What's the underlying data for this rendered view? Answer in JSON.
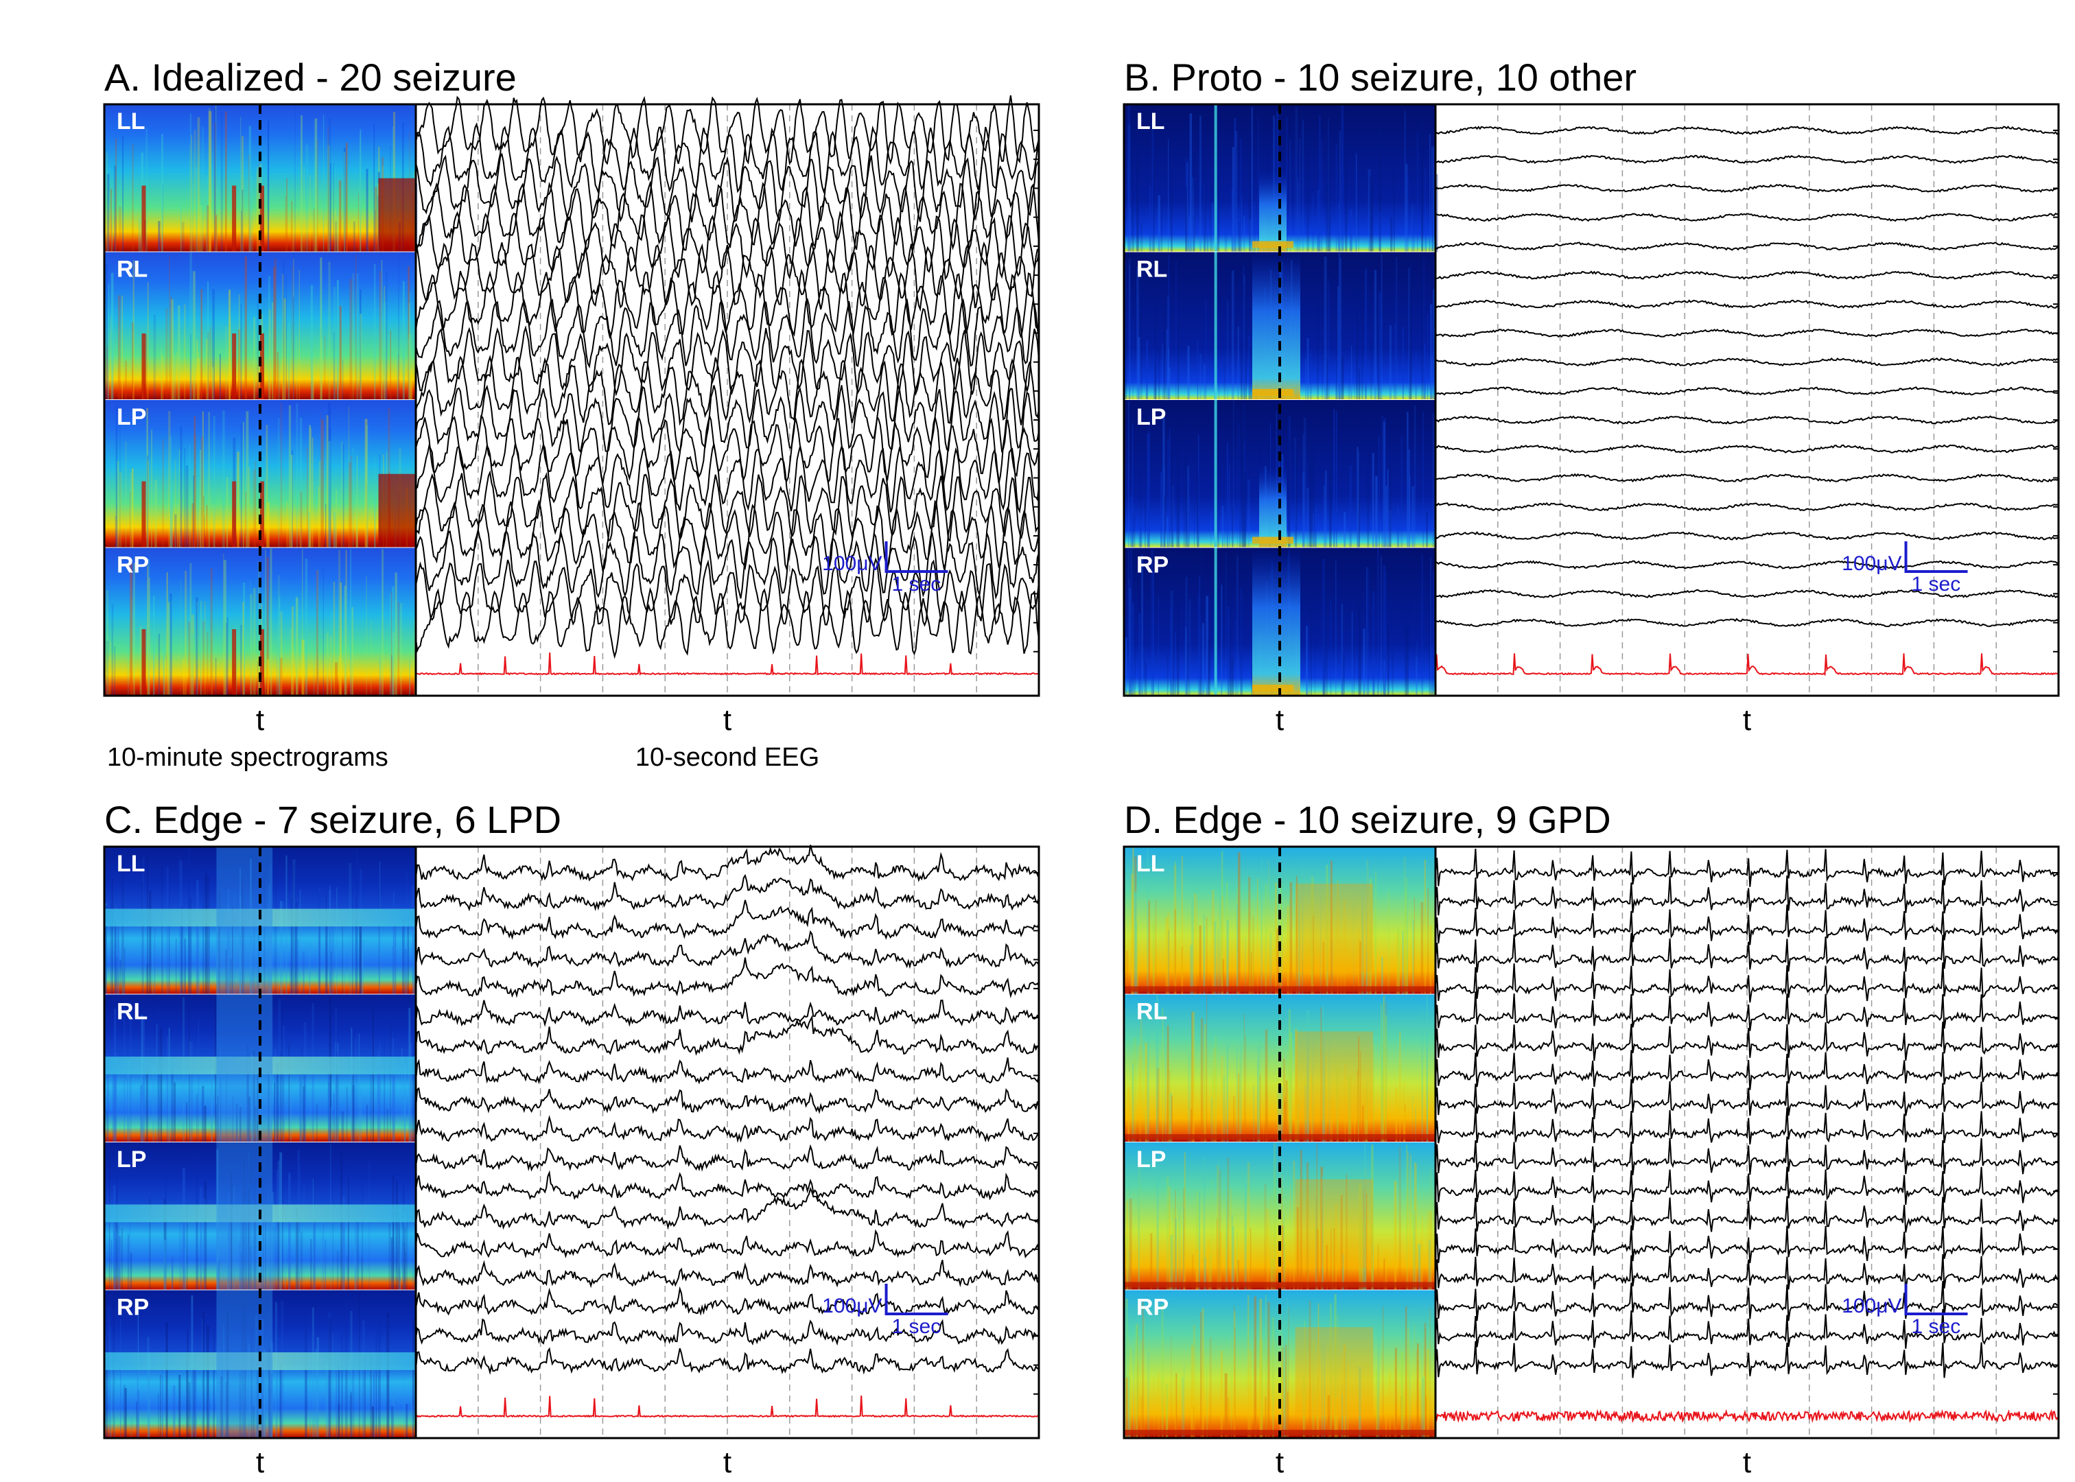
{
  "figure": {
    "panels": [
      {
        "id": "A",
        "title": "A. Idealized - 20 seizure",
        "pattern": "idealized",
        "channel_labels": [
          "LL",
          "RL",
          "LP",
          "RP"
        ],
        "spectrogram_axis_label": "t",
        "eeg_axis_label": "t",
        "spectrogram_caption": "10-minute spectrograms",
        "eeg_caption": "10-second EEG",
        "scale_bar": {
          "amplitude": "100μV",
          "time": "1 sec"
        }
      },
      {
        "id": "B",
        "title": "B. Proto - 10 seizure, 10 other",
        "pattern": "proto",
        "channel_labels": [
          "LL",
          "RL",
          "LP",
          "RP"
        ],
        "spectrogram_axis_label": "t",
        "eeg_axis_label": "t",
        "spectrogram_caption": "",
        "eeg_caption": "",
        "scale_bar": {
          "amplitude": "100μV",
          "time": "1 sec"
        }
      },
      {
        "id": "C",
        "title": "C. Edge - 7 seizure, 6 LPD",
        "pattern": "lpd",
        "channel_labels": [
          "LL",
          "RL",
          "LP",
          "RP"
        ],
        "spectrogram_axis_label": "t",
        "eeg_axis_label": "t",
        "spectrogram_caption": "",
        "eeg_caption": "",
        "scale_bar": {
          "amplitude": "100μV",
          "time": "1 sec"
        }
      },
      {
        "id": "D",
        "title": "D. Edge - 10 seizure, 9 GPD",
        "pattern": "gpd",
        "channel_labels": [
          "LL",
          "RL",
          "LP",
          "RP"
        ],
        "spectrogram_axis_label": "t",
        "eeg_axis_label": "t",
        "spectrogram_caption": "",
        "eeg_caption": "",
        "scale_bar": {
          "amplitude": "100μV",
          "time": "1 sec"
        }
      }
    ],
    "colors": {
      "eeg_trace": "#000000",
      "ecg_trace": "#e8141b",
      "scale_bar": "#1c1ccc",
      "marker_line": "#000000",
      "gridline": "#9a9a9a",
      "label_text": "#ffffff"
    }
  }
}
